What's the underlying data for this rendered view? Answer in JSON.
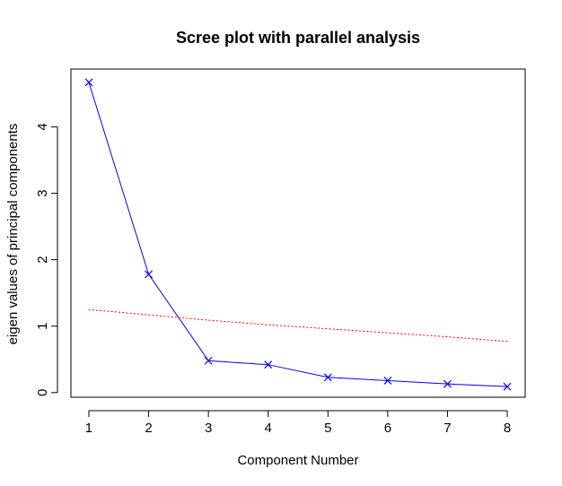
{
  "chart_data": {
    "type": "line",
    "title": "Scree plot with parallel analysis",
    "xlabel": "Component Number",
    "ylabel": "eigen values of principal components",
    "x": [
      1,
      2,
      3,
      4,
      5,
      6,
      7,
      8
    ],
    "xlim": [
      0.7,
      8.3
    ],
    "ylim": [
      -0.07,
      4.87
    ],
    "xticks": [
      "1",
      "2",
      "3",
      "4",
      "5",
      "6",
      "7",
      "8"
    ],
    "yticks": [
      "0",
      "1",
      "2",
      "3",
      "4"
    ],
    "grid": false,
    "series": [
      {
        "color": "#0000ff",
        "line_style": "solid",
        "marker": "x",
        "values": [
          4.67,
          1.78,
          0.48,
          0.42,
          0.23,
          0.18,
          0.13,
          0.09
        ]
      },
      {
        "color": "#ff0000",
        "line_style": "dotted",
        "marker": "none",
        "values": [
          1.25,
          1.17,
          1.09,
          1.02,
          0.96,
          0.9,
          0.84,
          0.77
        ]
      }
    ]
  }
}
